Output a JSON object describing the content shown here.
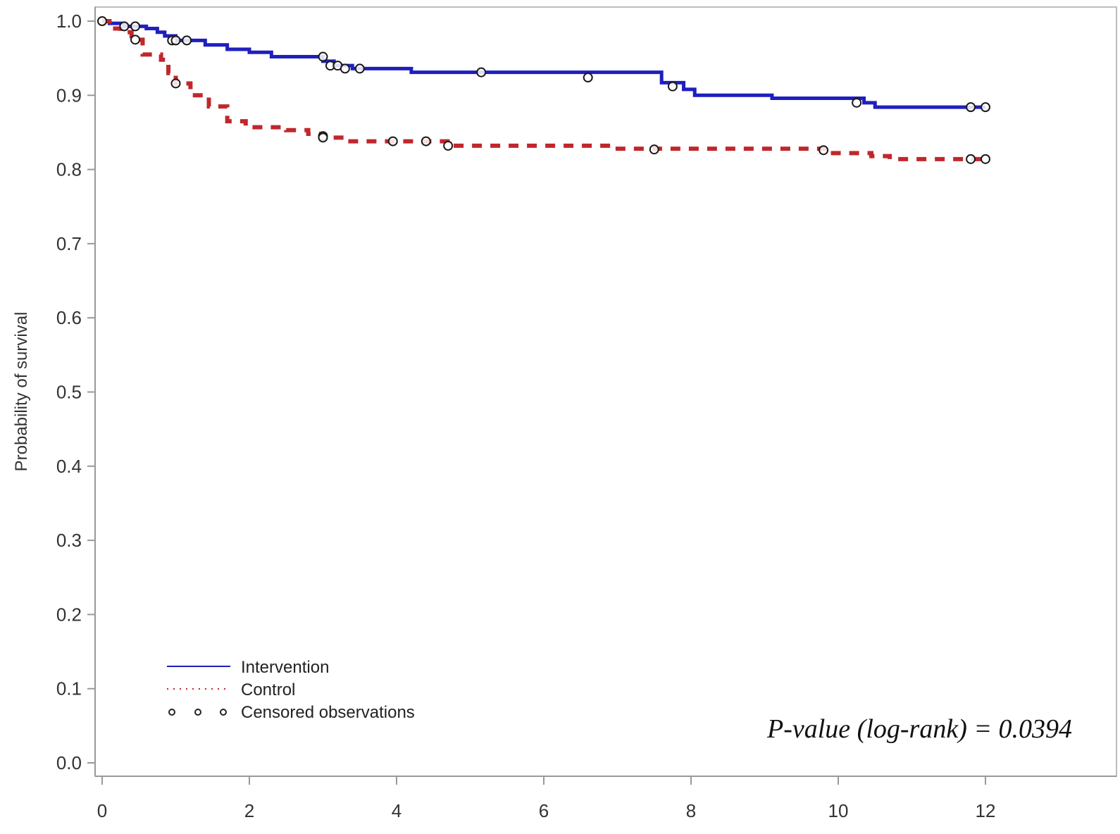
{
  "chart_data": {
    "type": "line",
    "title": "",
    "xlabel": "",
    "ylabel": "Probability of survival",
    "xlim": [
      0,
      13.5
    ],
    "ylim": [
      0,
      1.05
    ],
    "xticks": [
      "0",
      "2",
      "4",
      "6",
      "8",
      "10",
      "12"
    ],
    "yticks": [
      "0.0",
      "0.1",
      "0.2",
      "0.3",
      "0.4",
      "0.5",
      "0.6",
      "0.7",
      "0.8",
      "0.9",
      "1.0"
    ],
    "grid": false,
    "legend_position": "bottom-left",
    "annotation": "P-value (log-rank) = 0.0394",
    "series": [
      {
        "name": "Intervention",
        "color": "#1f1fbf",
        "style": "solid",
        "step_points": [
          [
            0,
            1.0
          ],
          [
            0.1,
            0.997
          ],
          [
            0.3,
            0.993
          ],
          [
            0.6,
            0.99
          ],
          [
            0.75,
            0.985
          ],
          [
            0.85,
            0.98
          ],
          [
            1.0,
            0.974
          ],
          [
            1.4,
            0.968
          ],
          [
            1.7,
            0.962
          ],
          [
            2.0,
            0.958
          ],
          [
            2.3,
            0.952
          ],
          [
            3.0,
            0.946
          ],
          [
            3.15,
            0.94
          ],
          [
            3.4,
            0.936
          ],
          [
            4.2,
            0.931
          ],
          [
            7.6,
            0.917
          ],
          [
            7.9,
            0.908
          ],
          [
            8.05,
            0.9
          ],
          [
            9.1,
            0.896
          ],
          [
            10.35,
            0.89
          ],
          [
            10.5,
            0.884
          ],
          [
            12.0,
            0.884
          ]
        ],
        "censored": [
          [
            0.3,
            0.993
          ],
          [
            0.45,
            0.993
          ],
          [
            0.95,
            0.974
          ],
          [
            1.0,
            0.974
          ],
          [
            1.15,
            0.974
          ],
          [
            3.0,
            0.952
          ],
          [
            3.1,
            0.94
          ],
          [
            3.2,
            0.94
          ],
          [
            3.3,
            0.936
          ],
          [
            3.5,
            0.936
          ],
          [
            5.15,
            0.931
          ],
          [
            6.6,
            0.924
          ],
          [
            7.75,
            0.912
          ],
          [
            10.25,
            0.89
          ],
          [
            11.8,
            0.884
          ],
          [
            12.0,
            0.884
          ]
        ]
      },
      {
        "name": "Control",
        "color": "#c0272d",
        "style": "dashed",
        "step_points": [
          [
            0,
            1.0
          ],
          [
            0.1,
            0.99
          ],
          [
            0.25,
            0.985
          ],
          [
            0.4,
            0.975
          ],
          [
            0.55,
            0.955
          ],
          [
            0.8,
            0.948
          ],
          [
            0.9,
            0.93
          ],
          [
            1.0,
            0.916
          ],
          [
            1.2,
            0.9
          ],
          [
            1.45,
            0.885
          ],
          [
            1.7,
            0.865
          ],
          [
            1.95,
            0.857
          ],
          [
            2.5,
            0.853
          ],
          [
            2.8,
            0.848
          ],
          [
            3.0,
            0.843
          ],
          [
            3.25,
            0.838
          ],
          [
            4.75,
            0.832
          ],
          [
            6.95,
            0.828
          ],
          [
            9.85,
            0.822
          ],
          [
            10.45,
            0.818
          ],
          [
            10.7,
            0.814
          ],
          [
            12.0,
            0.814
          ]
        ],
        "censored": [
          [
            0.0,
            1.0
          ],
          [
            0.45,
            0.975
          ],
          [
            1.0,
            0.916
          ],
          [
            3.0,
            0.845
          ],
          [
            3.0,
            0.843
          ],
          [
            3.95,
            0.838
          ],
          [
            4.4,
            0.838
          ],
          [
            4.7,
            0.832
          ],
          [
            7.5,
            0.827
          ],
          [
            9.8,
            0.826
          ],
          [
            11.8,
            0.814
          ],
          [
            12.0,
            0.814
          ]
        ]
      }
    ],
    "legend": [
      {
        "label": "Intervention",
        "kind": "solid-line",
        "color": "#1f1fbf"
      },
      {
        "label": "Control",
        "kind": "dotted-line",
        "color": "#c0272d"
      },
      {
        "label": "Censored observations",
        "kind": "circle-markers",
        "color": "#222222"
      }
    ]
  }
}
